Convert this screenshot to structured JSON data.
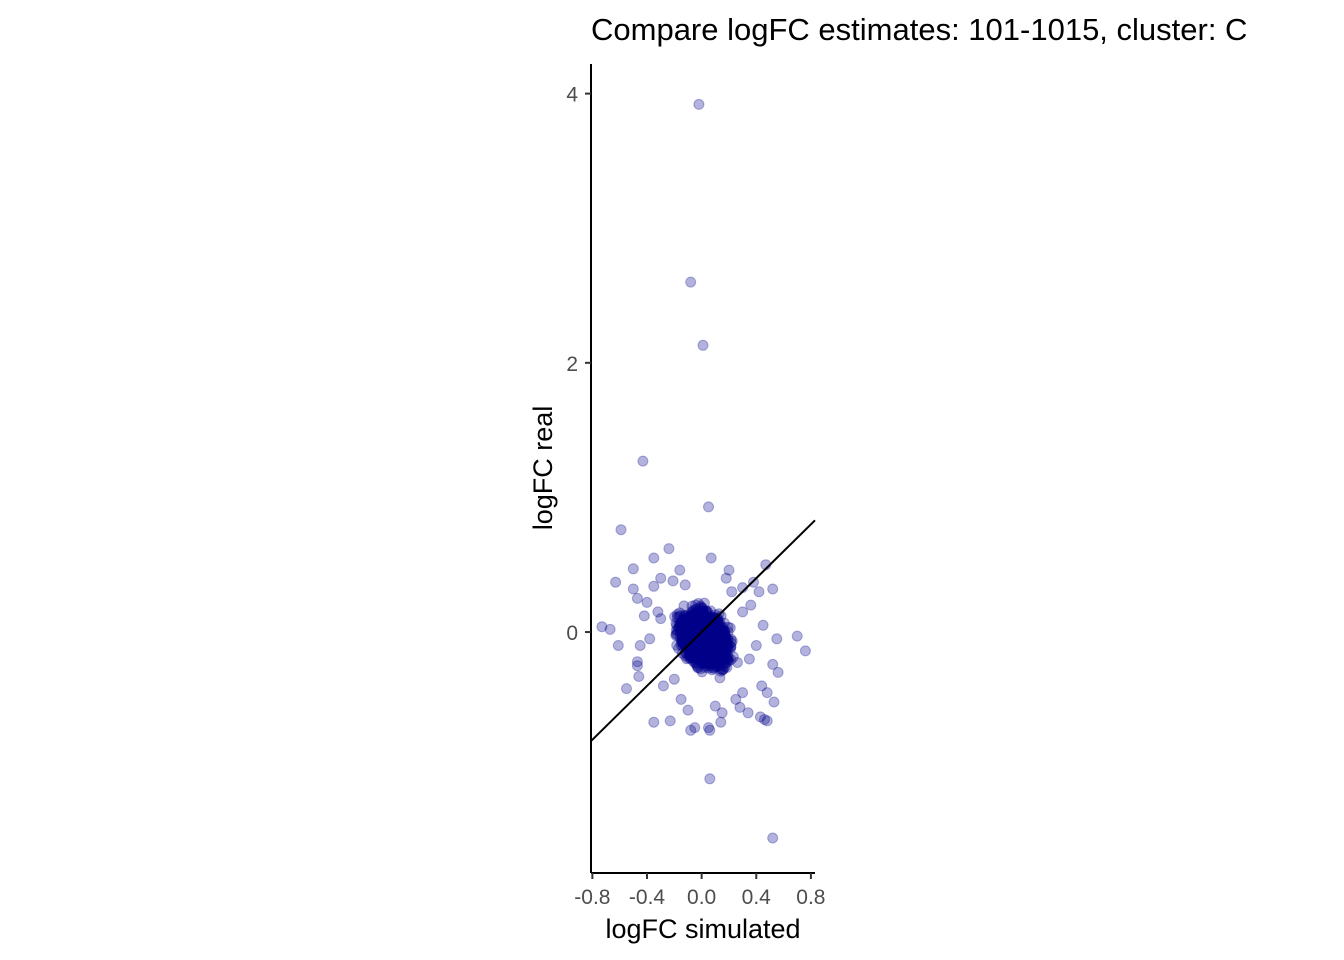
{
  "chart_data": {
    "type": "scatter",
    "title": "Compare logFC estimates: 101-1015, cluster: C",
    "xlabel": "logFC simulated",
    "ylabel": "logFC real",
    "xlim": [
      -0.81,
      0.83
    ],
    "ylim": [
      -1.79,
      4.22
    ],
    "xticks": [
      -0.8,
      -0.4,
      0.0,
      0.4,
      0.8
    ],
    "xtick_labels": [
      "-0.8",
      "-0.4",
      "0.0",
      "0.4",
      "0.8"
    ],
    "yticks": [
      0,
      2,
      4
    ],
    "ytick_labels": [
      "0",
      "2",
      "4"
    ],
    "grid": false,
    "legend": "none",
    "point_color": "#00008B",
    "point_opacity": 0.3,
    "reference_line": {
      "type": "identity",
      "slope": 1,
      "intercept": 0,
      "color": "#000000"
    },
    "points": {
      "x": [
        -0.02,
        -0.08,
        0.01,
        -0.43,
        0.05,
        -0.59,
        -0.24,
        0.07,
        -0.35,
        -0.5,
        -0.16,
        0.2,
        0.47,
        -0.63,
        0.52,
        -0.5,
        -0.47,
        -0.21,
        -0.3,
        -0.73,
        -0.67,
        -0.61,
        0.7,
        0.76,
        -0.47,
        -0.47,
        -0.55,
        -0.46,
        -0.35,
        -0.23,
        0.46,
        -0.1,
        -0.05,
        -0.08,
        0.05,
        0.06,
        0.14,
        0.15,
        0.28,
        0.34,
        0.43,
        0.48,
        0.53,
        0.56,
        0.52,
        0.48,
        0.06,
        0.52,
        0.3,
        0.38,
        -0.35,
        -0.4,
        -0.3,
        0.35,
        0.4,
        0.45,
        0.25,
        0.1,
        -0.15,
        -0.38,
        0.42,
        0.3,
        -0.42,
        0.55,
        0.18,
        -0.28,
        -0.45,
        0.44,
        -0.12,
        0.3,
        0.36,
        -0.2,
        0.22,
        -0.32
      ],
      "y": [
        3.92,
        2.6,
        2.13,
        1.27,
        0.93,
        0.76,
        0.62,
        0.55,
        0.55,
        0.47,
        0.46,
        0.46,
        0.5,
        0.37,
        0.32,
        0.32,
        0.25,
        0.38,
        0.4,
        0.04,
        0.02,
        -0.1,
        -0.03,
        -0.14,
        -0.22,
        -0.25,
        -0.42,
        -0.33,
        -0.67,
        -0.66,
        -0.65,
        -0.58,
        -0.71,
        -0.73,
        -0.71,
        -0.73,
        -0.67,
        -0.6,
        -0.56,
        -0.6,
        -0.63,
        -0.66,
        -0.52,
        -0.3,
        -0.24,
        -0.45,
        -1.09,
        -1.53,
        0.33,
        0.37,
        0.34,
        0.22,
        0.1,
        -0.2,
        -0.1,
        0.05,
        -0.5,
        -0.55,
        -0.5,
        -0.05,
        0.3,
        0.15,
        0.12,
        -0.05,
        0.4,
        -0.4,
        -0.1,
        -0.4,
        0.35,
        -0.45,
        0.2,
        -0.35,
        0.3,
        0.15
      ]
    },
    "cluster": {
      "center": [
        0.02,
        -0.05
      ],
      "spread": [
        0.13,
        0.14
      ],
      "count": 2400
    }
  }
}
